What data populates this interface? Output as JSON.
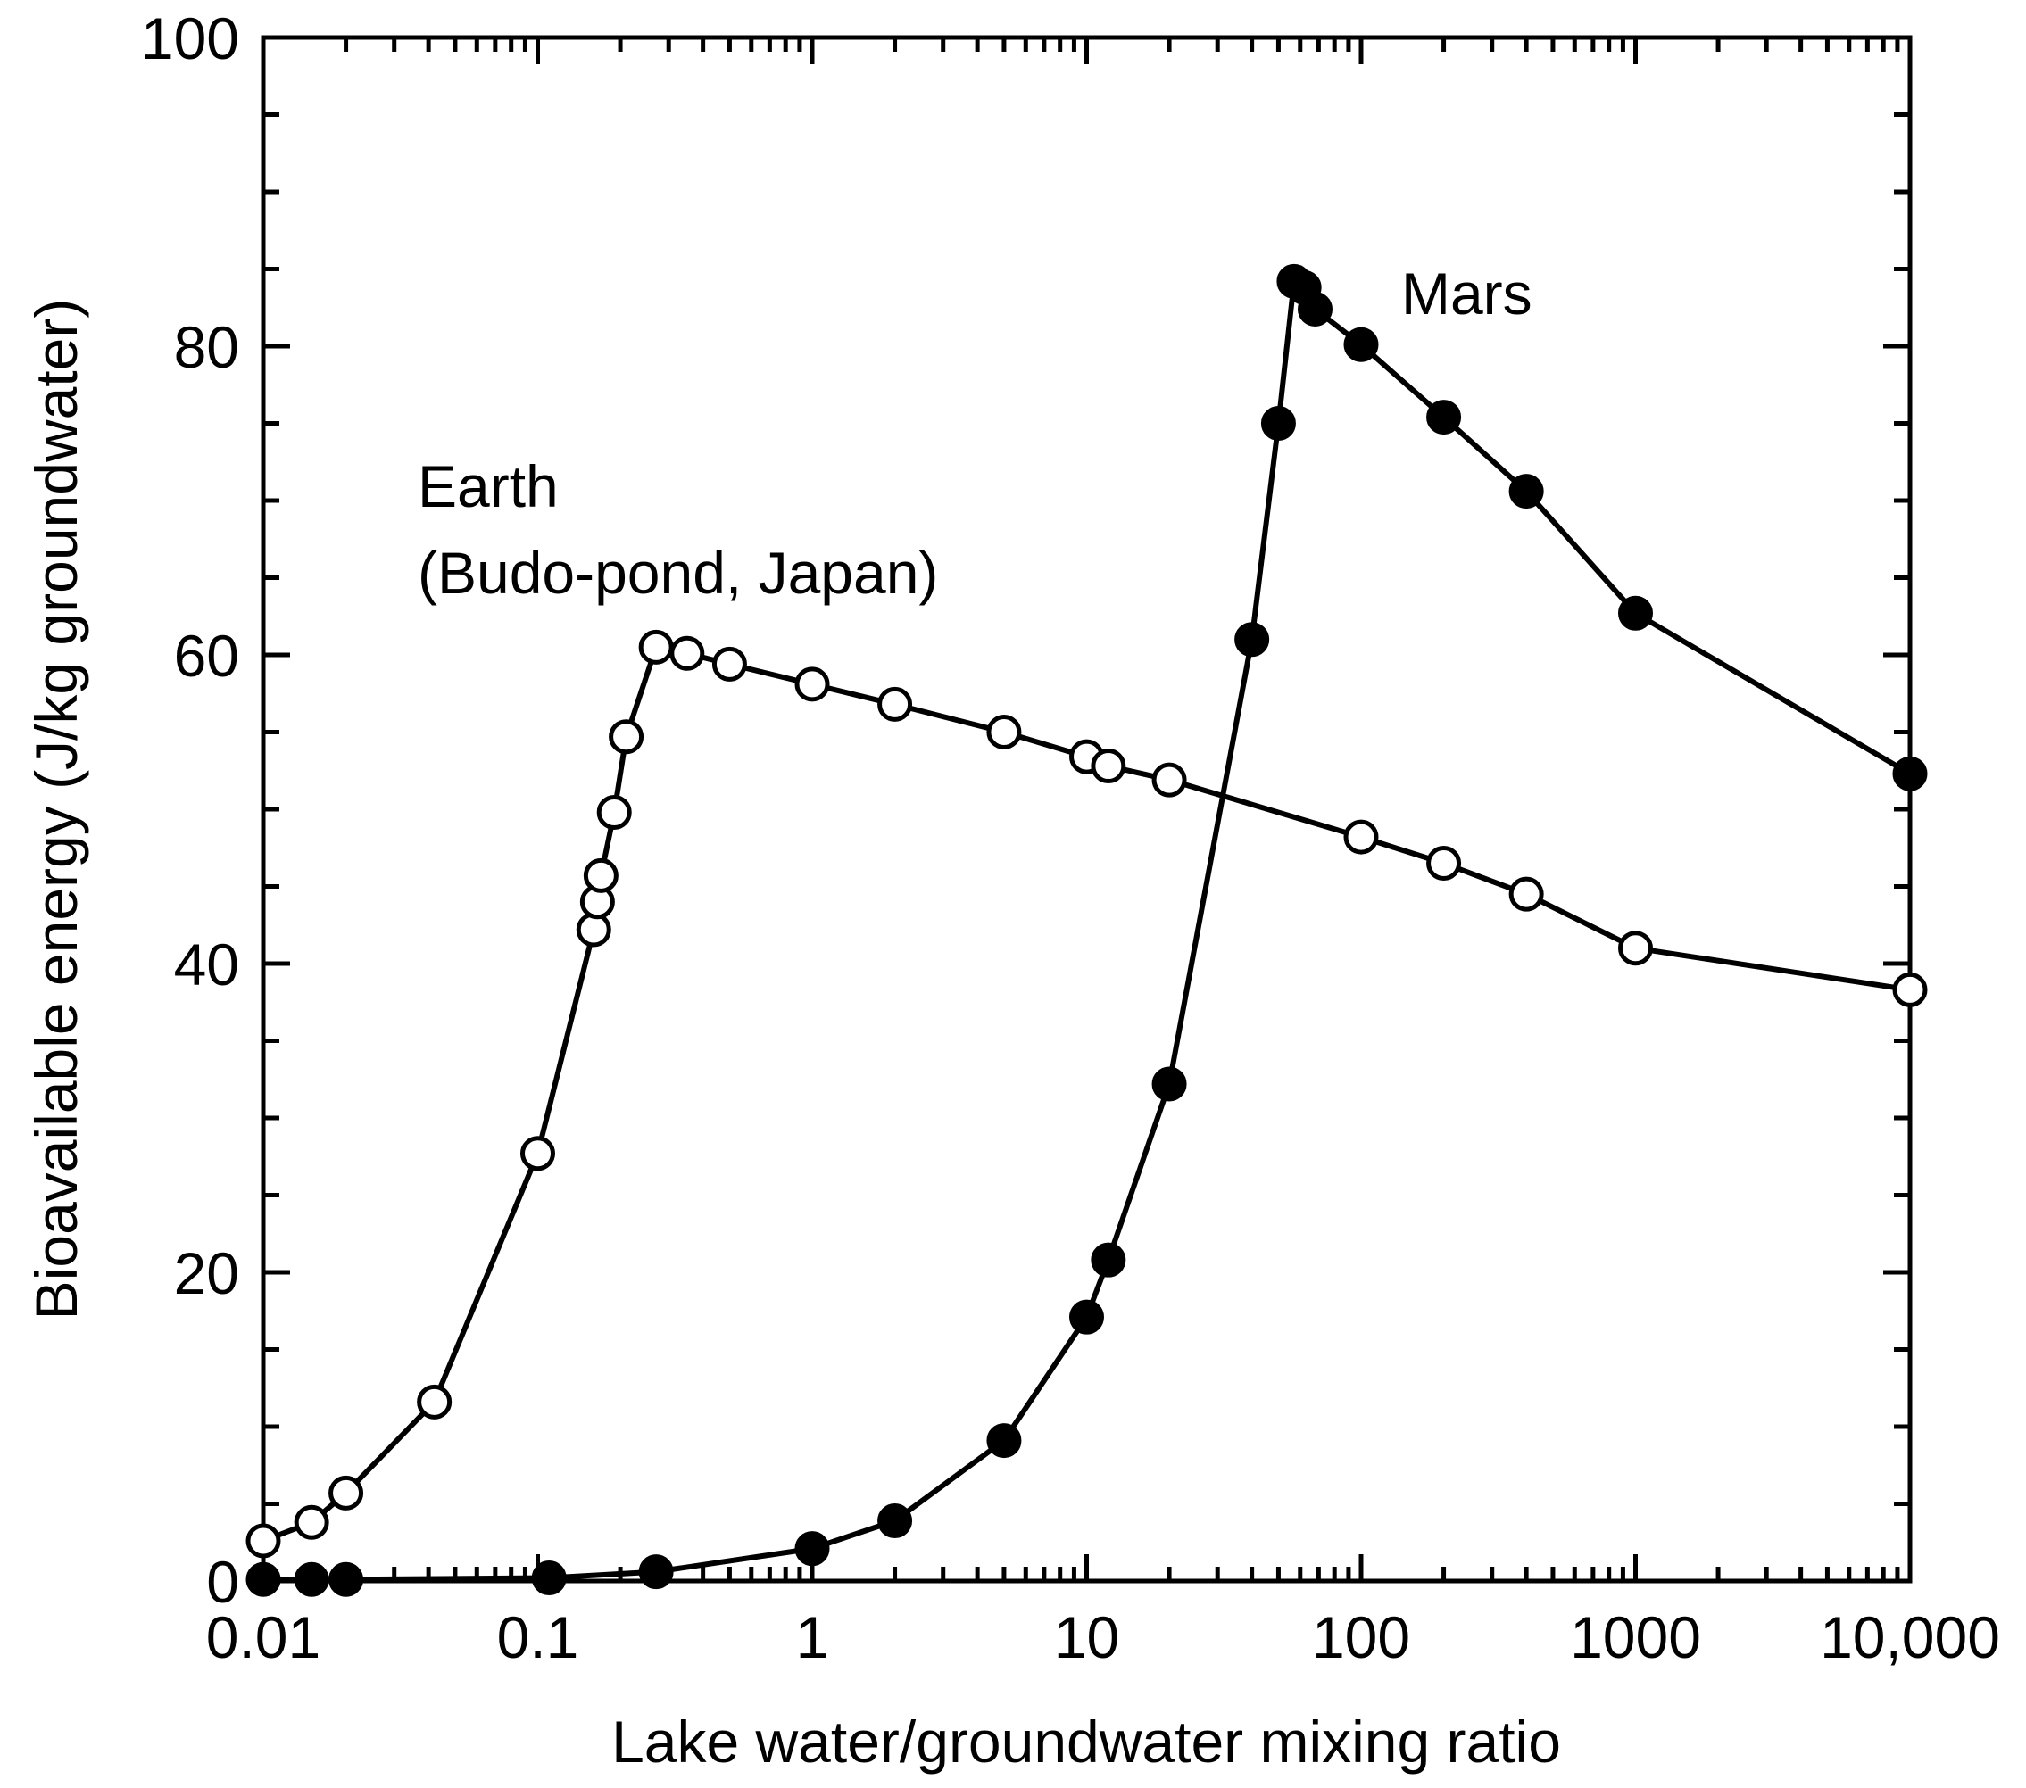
{
  "chart_data": {
    "type": "line",
    "title": "",
    "xlabel": "Lake water/groundwater mixing ratio",
    "ylabel": "Bioavailable energy (J/kg groundwater)",
    "xscale": "log",
    "xlim": [
      0.01,
      10000
    ],
    "ylim": [
      0,
      100
    ],
    "x_tick_values": [
      0.01,
      0.1,
      1,
      10,
      100,
      1000,
      10000
    ],
    "x_tick_labels": [
      "0.01",
      "0.1",
      "1",
      "10",
      "100",
      "1000",
      "10,000"
    ],
    "y_tick_values": [
      0,
      20,
      40,
      60,
      80,
      100
    ],
    "y_tick_labels": [
      "0",
      "20",
      "40",
      "60",
      "80",
      "100"
    ],
    "grid": false,
    "series": [
      {
        "name": "Earth (Budo-pond, Japan)",
        "marker": "open-circle",
        "x": [
          0.01,
          0.015,
          0.02,
          0.042,
          0.1,
          0.16,
          0.165,
          0.17,
          0.19,
          0.21,
          0.27,
          0.35,
          0.5,
          1,
          2,
          5,
          10,
          12,
          20,
          100,
          200,
          400,
          1000,
          10000
        ],
        "values": [
          2.6,
          3.8,
          5.7,
          11.6,
          27.7,
          42.2,
          44,
          45.7,
          49.8,
          54.7,
          60.5,
          60.1,
          59.4,
          58.1,
          56.8,
          55,
          53.4,
          52.8,
          51.9,
          48.2,
          46.5,
          44.5,
          41,
          38.3
        ]
      },
      {
        "name": "Mars",
        "marker": "filled-circle",
        "x": [
          0.01,
          0.015,
          0.02,
          0.11,
          0.27,
          1,
          2,
          5,
          10,
          12,
          20,
          40,
          50,
          57,
          62,
          68,
          100,
          200,
          400,
          1000,
          10000
        ],
        "values": [
          0.1,
          0.1,
          0.1,
          0.2,
          0.6,
          2.1,
          3.9,
          9.1,
          17.1,
          20.8,
          32.2,
          61,
          75,
          84.2,
          83.8,
          82.4,
          80.1,
          75.4,
          70.6,
          62.7,
          52.3
        ]
      }
    ],
    "annotations": [
      {
        "text": "Mars",
        "near_series": "Mars",
        "position": "top-right of peak"
      },
      {
        "text": "Earth",
        "near_series": "Earth (Budo-pond, Japan)",
        "position": "above peak"
      },
      {
        "text": "(Budo-pond, Japan)",
        "near_series": "Earth (Budo-pond, Japan)",
        "position": "above peak"
      }
    ]
  }
}
